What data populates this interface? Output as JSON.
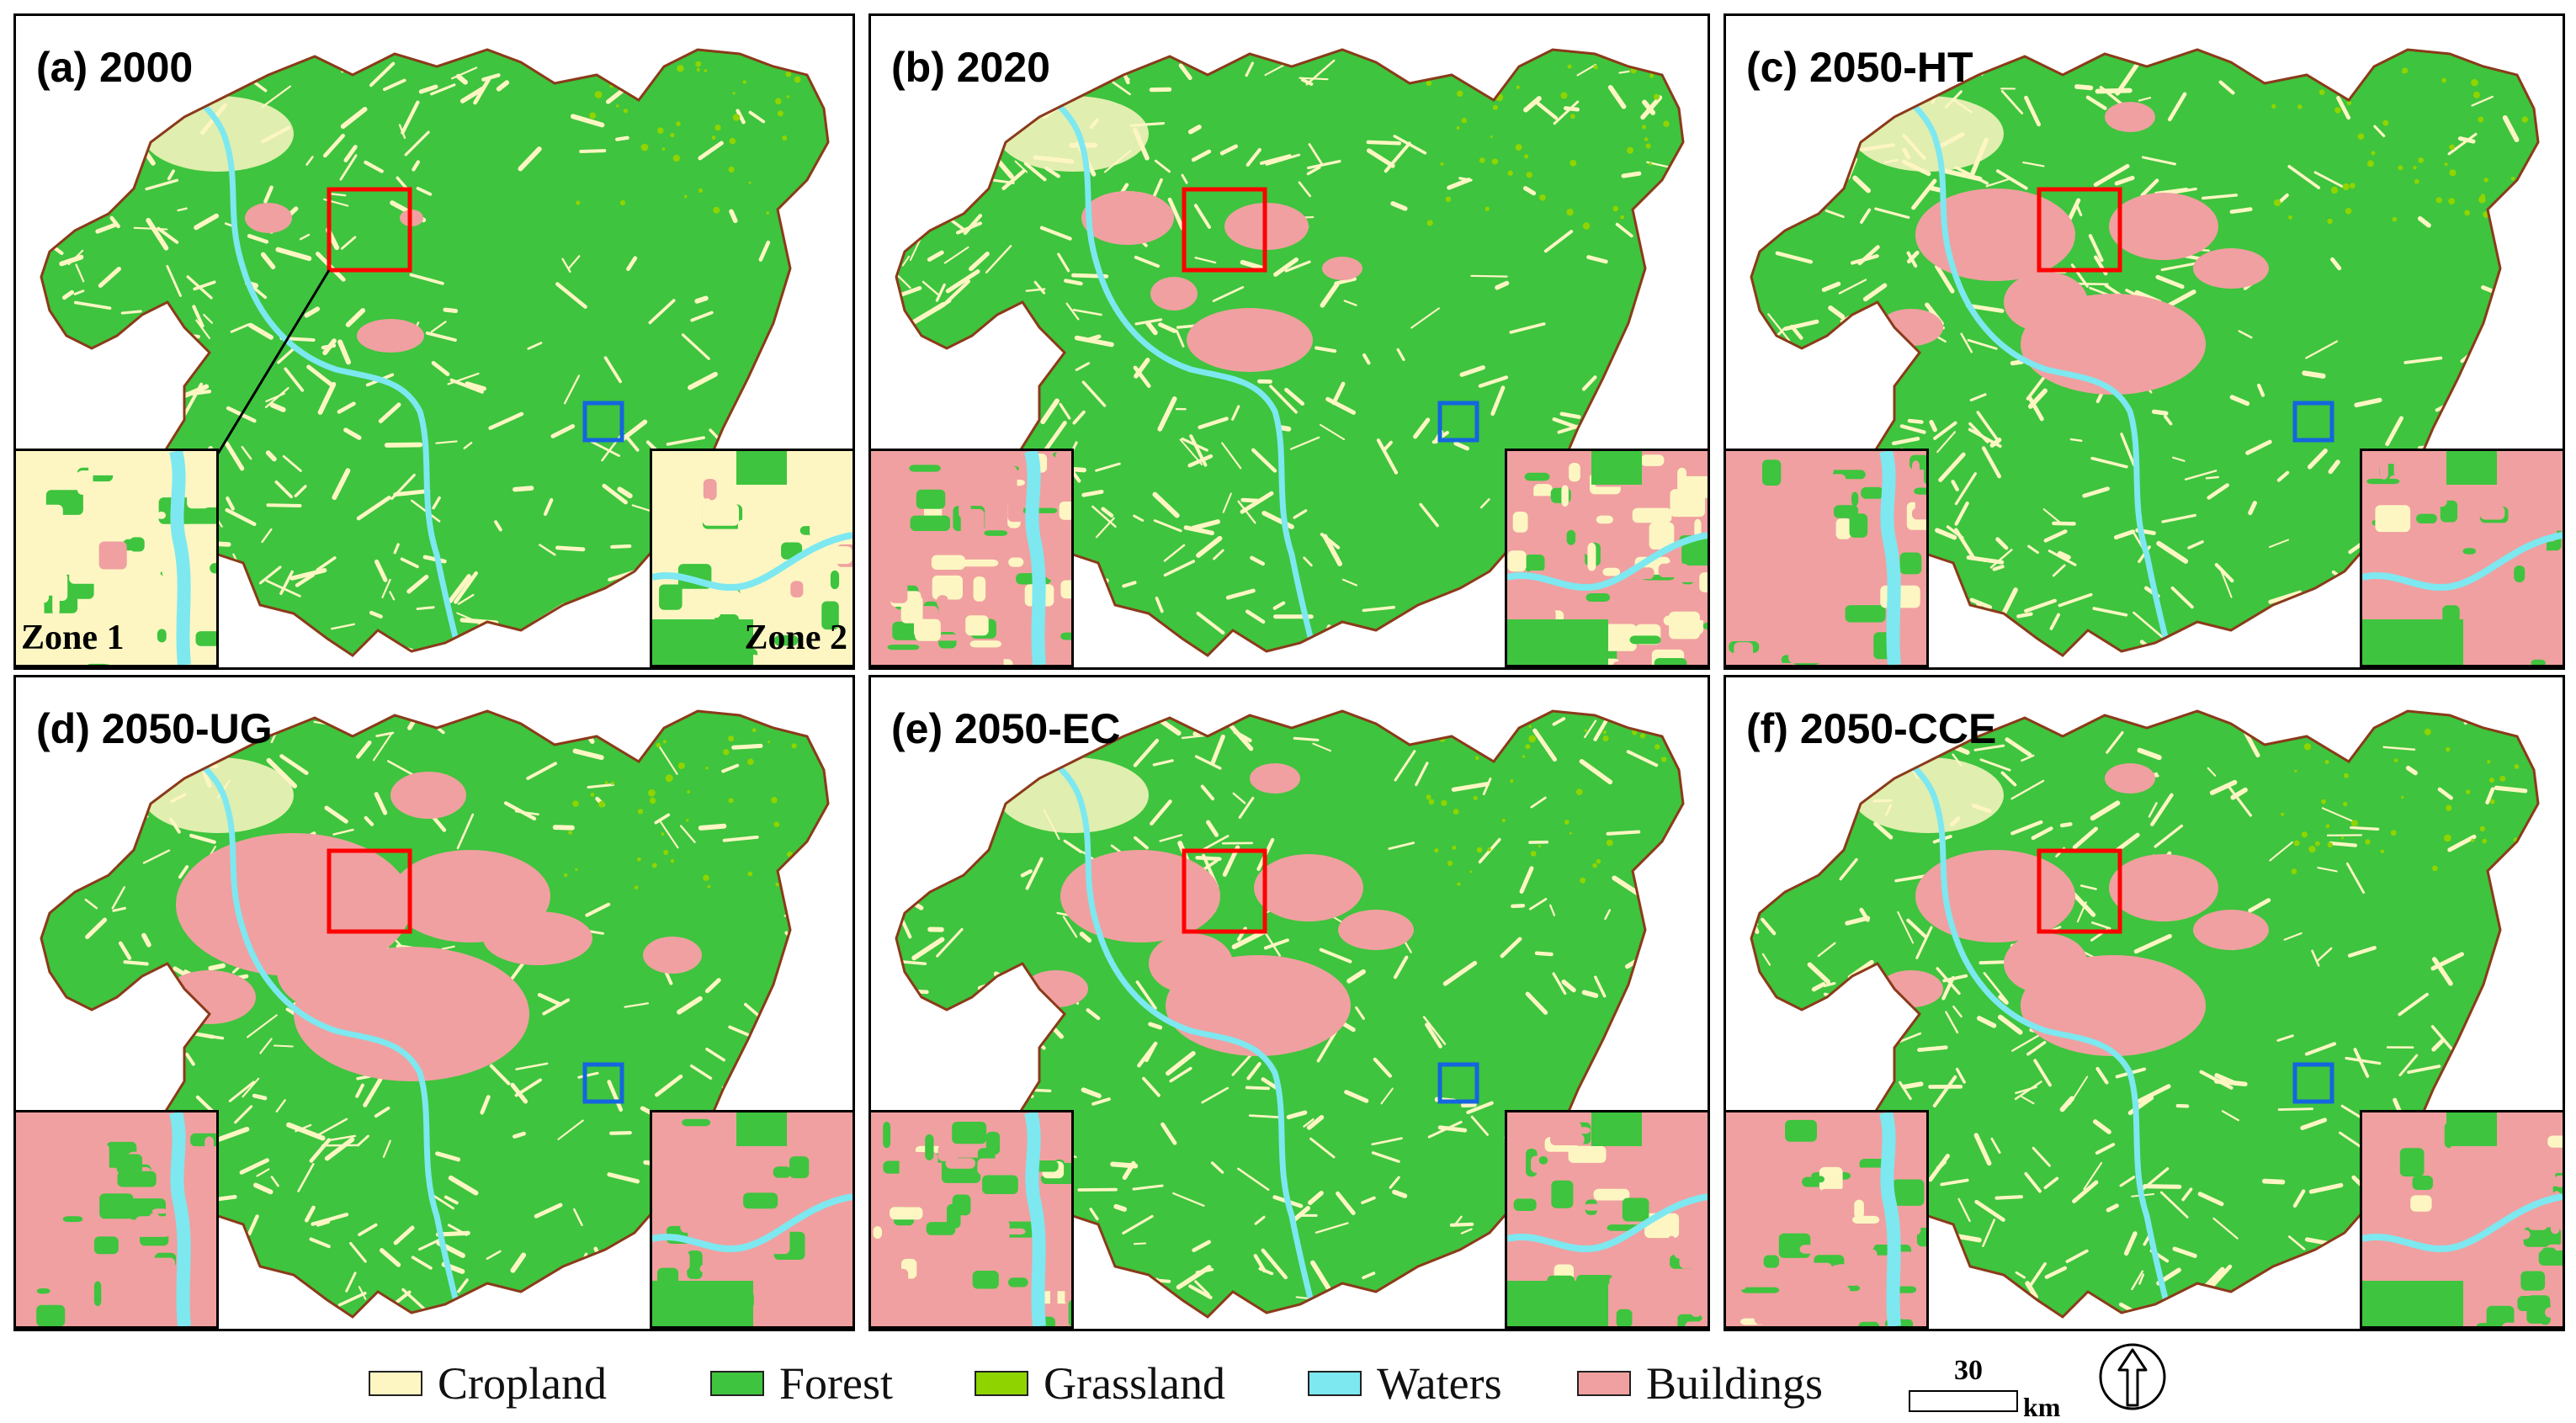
{
  "panels": [
    {
      "id": "a",
      "title": "(a) 2000",
      "stage": 0
    },
    {
      "id": "b",
      "title": "(b) 2020",
      "stage": 1
    },
    {
      "id": "c",
      "title": "(c) 2050-HT",
      "stage": 2
    },
    {
      "id": "d",
      "title": "(d) 2050-UG",
      "stage": 3
    },
    {
      "id": "e",
      "title": "(e) 2050-EC",
      "stage": 2
    },
    {
      "id": "f",
      "title": "(f) 2050-CCE",
      "stage": 2
    }
  ],
  "zones": {
    "zone1": "Zone 1",
    "zone2": "Zone 2"
  },
  "legend": [
    {
      "label": "Cropland",
      "color": "#fdf6c3"
    },
    {
      "label": "Forest",
      "color": "#3ec43e"
    },
    {
      "label": "Grassland",
      "color": "#8fd400"
    },
    {
      "label": "Waters",
      "color": "#7de8f0"
    },
    {
      "label": "Buildings",
      "color": "#f0a0a0"
    }
  ],
  "scale": {
    "value": "30",
    "unit": "km"
  },
  "colors": {
    "zone1_box": "#ff0000",
    "zone2_box": "#1565e0",
    "boundary": "#8b3a1a"
  }
}
